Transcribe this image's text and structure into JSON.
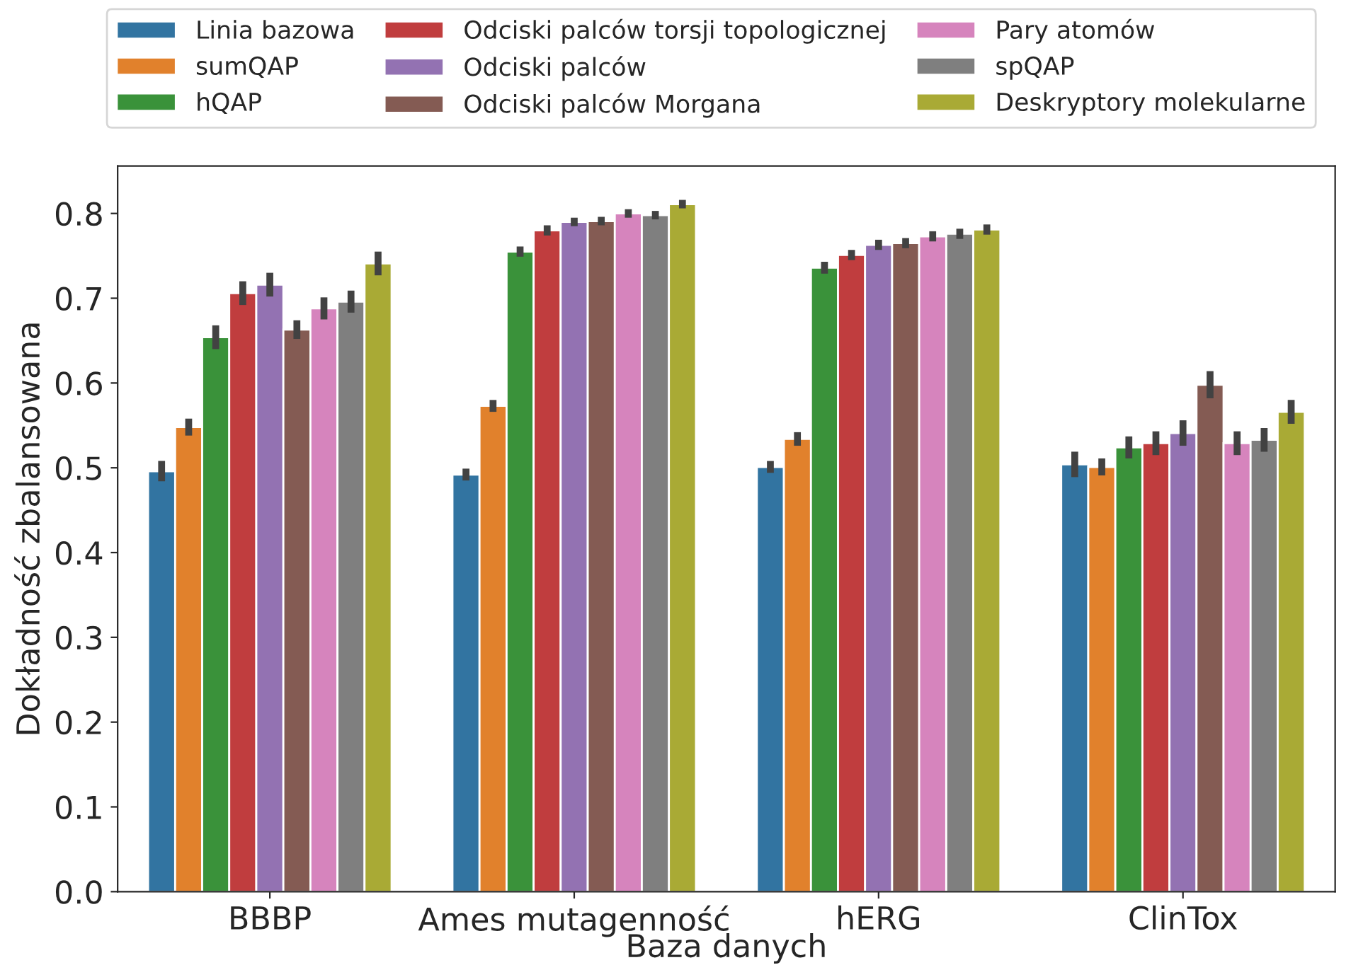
{
  "chart_data": {
    "type": "bar",
    "xlabel": "Baza danych",
    "ylabel": "Dokładność zbalansowana",
    "categories": [
      "BBBP",
      "Ames mutagenność",
      "hERG",
      "ClinTox"
    ],
    "series": [
      {
        "name": "Linia bazowa",
        "color": "#3274a1",
        "values": [
          0.496,
          0.492,
          0.501,
          0.504
        ],
        "errors": [
          0.012,
          0.007,
          0.007,
          0.015
        ]
      },
      {
        "name": "sumQAP",
        "color": "#e1812c",
        "values": [
          0.548,
          0.573,
          0.534,
          0.501
        ],
        "errors": [
          0.01,
          0.007,
          0.008,
          0.01
        ]
      },
      {
        "name": "hQAP",
        "color": "#3a923a",
        "values": [
          0.654,
          0.755,
          0.736,
          0.524
        ],
        "errors": [
          0.014,
          0.006,
          0.007,
          0.013
        ]
      },
      {
        "name": "Odciski palców torsji topologicznej",
        "color": "#c03d3e",
        "values": [
          0.706,
          0.78,
          0.751,
          0.529
        ],
        "errors": [
          0.014,
          0.006,
          0.006,
          0.014
        ]
      },
      {
        "name": "Odciski palców",
        "color": "#9372b2",
        "values": [
          0.716,
          0.79,
          0.763,
          0.541
        ],
        "errors": [
          0.014,
          0.005,
          0.006,
          0.015
        ]
      },
      {
        "name": "Odciski palców Morgana",
        "color": "#845b53",
        "values": [
          0.663,
          0.791,
          0.765,
          0.598
        ],
        "errors": [
          0.011,
          0.005,
          0.006,
          0.016
        ]
      },
      {
        "name": "Pary atomów",
        "color": "#d684bd",
        "values": [
          0.688,
          0.8,
          0.773,
          0.529
        ],
        "errors": [
          0.013,
          0.005,
          0.006,
          0.014
        ]
      },
      {
        "name": "spQAP",
        "color": "#7f7f7f",
        "values": [
          0.696,
          0.798,
          0.776,
          0.533
        ],
        "errors": [
          0.013,
          0.005,
          0.006,
          0.014
        ]
      },
      {
        "name": "Deskryptory molekularne",
        "color": "#a9aa35",
        "values": [
          0.741,
          0.811,
          0.781,
          0.566
        ],
        "errors": [
          0.014,
          0.005,
          0.006,
          0.014
        ]
      }
    ],
    "ylim": [
      0,
      0.856
    ],
    "yticks": [
      {
        "value": 0,
        "label": "0.0"
      },
      {
        "value": 0.1,
        "label": "0.1"
      },
      {
        "value": 0.2,
        "label": "0.2"
      },
      {
        "value": 0.3,
        "label": "0.3"
      },
      {
        "value": 0.4,
        "label": "0.4"
      },
      {
        "value": 0.5,
        "label": "0.5"
      },
      {
        "value": 0.6,
        "label": "0.6"
      },
      {
        "value": 0.7,
        "label": "0.7"
      },
      {
        "value": 0.8,
        "label": "0.8"
      }
    ],
    "legend": "top",
    "grid": false
  }
}
